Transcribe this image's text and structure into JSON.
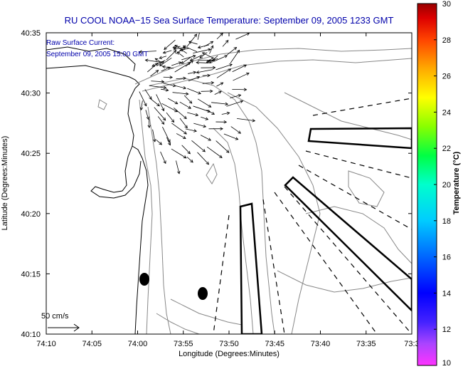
{
  "title": "RU COOL  NOAA−15  Sea Surface Temperature:  September 09, 2005 1233 GMT",
  "annotation": {
    "line1": "Raw Surface Current:",
    "line2": "September 09, 2005 15:00 GMT"
  },
  "scale_label": "50 cm/s",
  "axes": {
    "xlabel": "Longitude (Degrees:Minutes)",
    "ylabel": "Latitude (Degrees:Minutes)",
    "x_ticks": [
      "74:10",
      "74:05",
      "74:00",
      "73:55",
      "73:50",
      "73:45",
      "73:40",
      "73:35",
      "73:3"
    ],
    "y_ticks": [
      "40:35",
      "40:30",
      "40:25",
      "40:20",
      "40:15",
      "40:10"
    ]
  },
  "colorbar": {
    "label": "Temperature (°C)",
    "ticks": [
      "30",
      "28",
      "26",
      "24",
      "22",
      "20",
      "18",
      "16",
      "14",
      "12",
      "10"
    ],
    "min": 10,
    "max": 30
  },
  "colors": {
    "vectors": "#000000",
    "contours": "#888888",
    "frame": "#000000",
    "title": "#0000aa"
  }
}
